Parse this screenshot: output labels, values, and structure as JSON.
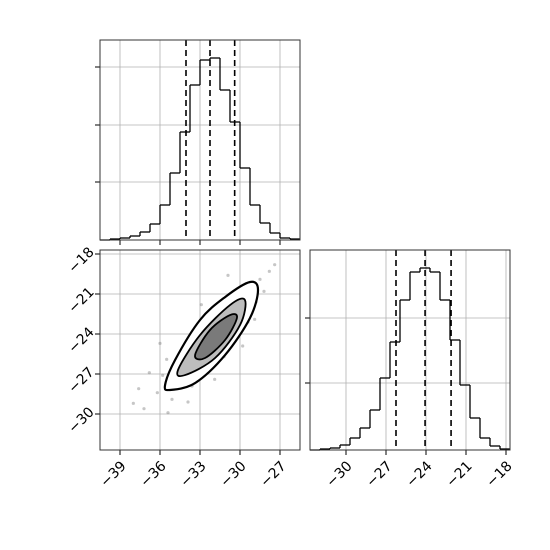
{
  "chart_data": [
    {
      "type": "step-histogram",
      "grid": true,
      "color": "#000000",
      "xlim": [
        -40.5,
        -25.5
      ],
      "xticks": [
        -39,
        -36,
        -33,
        -30,
        -27
      ],
      "ylim": [
        0,
        200
      ],
      "yticks": [
        58,
        115,
        173
      ],
      "bins": [
        -40.5,
        -39.75,
        -39,
        -38.25,
        -37.5,
        -36.75,
        -36,
        -35.25,
        -34.5,
        -33.75,
        -33,
        -32.25,
        -31.5,
        -30.75,
        -30,
        -29.25,
        -28.5,
        -27.75,
        -27,
        -26.25,
        -25.5
      ],
      "counts": [
        0,
        1,
        2,
        4,
        8,
        16,
        35,
        67,
        108,
        155,
        180,
        182,
        150,
        118,
        72,
        35,
        17,
        7,
        2,
        1
      ],
      "quantiles": [
        -34.05,
        -32.25,
        -30.4
      ]
    },
    {
      "type": "scatter-contour",
      "grid": true,
      "color": "#808080",
      "xlim": [
        -40.5,
        -25.5
      ],
      "xticks": [
        {
          "value": -39,
          "label": "−39"
        },
        {
          "value": -36,
          "label": "−36"
        },
        {
          "value": -33,
          "label": "−33"
        },
        {
          "value": -30,
          "label": "−30"
        },
        {
          "value": -27,
          "label": "−27"
        }
      ],
      "ylim": [
        -32.7,
        -17.7
      ],
      "yticks": [
        {
          "value": -18,
          "label": "−18"
        },
        {
          "value": -21,
          "label": "−21"
        },
        {
          "value": -24,
          "label": "−24"
        },
        {
          "value": -27,
          "label": "−27"
        },
        {
          "value": -30,
          "label": "−30"
        }
      ],
      "x": [
        -36.2,
        -35.8,
        -35.1,
        -34.9,
        -34.6,
        -34.3,
        -34.0,
        -33.8,
        -33.6,
        -33.4,
        -33.2,
        -33.0,
        -32.8,
        -32.6,
        -32.4,
        -32.2,
        -32.0,
        -31.8,
        -31.6,
        -31.4,
        -31.2,
        -31.0,
        -30.8,
        -30.6,
        -30.4,
        -30.2,
        -30.0,
        -29.7,
        -29.4,
        -29.1,
        -28.8,
        -28.5,
        -28.2,
        -27.8,
        -37.2,
        -36.8,
        -37.6,
        -35.4,
        -27.4,
        -28.9,
        -36.0,
        -31.9,
        -30.9,
        -33.9,
        -29.8,
        -38.0,
        -35.5,
        -32.9
      ],
      "y": [
        -28.4,
        -27.1,
        -28.9,
        -26.3,
        -27.5,
        -25.2,
        -26.8,
        -24.6,
        -27.9,
        -25.9,
        -23.8,
        -25.1,
        -26.4,
        -24.2,
        -22.9,
        -25.5,
        -23.6,
        -24.8,
        -22.4,
        -23.9,
        -25.7,
        -22.1,
        -23.3,
        -21.5,
        -24.4,
        -22.6,
        -20.9,
        -21.8,
        -23.1,
        -20.4,
        -21.6,
        -19.9,
        -20.8,
        -19.3,
        -29.6,
        -26.9,
        -28.1,
        -29.9,
        -18.8,
        -22.9,
        -24.7,
        -27.4,
        -19.6,
        -29.1,
        -24.9,
        -29.2,
        -25.9,
        -21.8
      ],
      "contours": [
        {
          "fill": "#ffffff",
          "x": [
            -35.62,
            -34.87,
            -33.0,
            -31.12,
            -29.25,
            -28.65,
            -29.25,
            -31.12,
            -33.37,
            -35.25
          ],
          "y": [
            -27.83,
            -25.95,
            -22.95,
            -21.23,
            -20.1,
            -20.7,
            -22.8,
            -25.58,
            -27.68,
            -28.2
          ]
        },
        {
          "fill": "#bdbdbd",
          "x": [
            -34.65,
            -33.0,
            -30.75,
            -29.63,
            -30.0,
            -31.87,
            -34.12
          ],
          "y": [
            -26.7,
            -24.08,
            -21.83,
            -21.45,
            -23.33,
            -25.8,
            -27.08
          ]
        },
        {
          "fill": "#7a7a7a",
          "x": [
            -33.37,
            -32.25,
            -30.75,
            -30.23,
            -31.12,
            -32.62
          ],
          "y": [
            -25.58,
            -23.7,
            -22.58,
            -22.8,
            -24.45,
            -25.8
          ]
        }
      ]
    },
    {
      "type": "step-histogram",
      "grid": true,
      "color": "#000000",
      "xlim": [
        -32.7,
        -17.7
      ],
      "xticks": [
        {
          "value": -30,
          "label": "−30"
        },
        {
          "value": -27,
          "label": "−27"
        },
        {
          "value": -24,
          "label": "−24"
        },
        {
          "value": -21,
          "label": "−21"
        },
        {
          "value": -18,
          "label": "−18"
        }
      ],
      "ylim": [
        0,
        200
      ],
      "yticks": [
        67,
        132
      ],
      "bins": [
        -32.7,
        -31.95,
        -31.2,
        -30.45,
        -29.7,
        -28.95,
        -28.2,
        -27.45,
        -26.7,
        -25.95,
        -25.2,
        -24.45,
        -23.7,
        -22.95,
        -22.2,
        -21.45,
        -20.7,
        -19.95,
        -19.2,
        -18.45,
        -17.7
      ],
      "counts": [
        0,
        1,
        2,
        5,
        12,
        22,
        40,
        72,
        108,
        150,
        178,
        182,
        178,
        150,
        110,
        65,
        32,
        12,
        4,
        1
      ],
      "quantiles": [
        -26.25,
        -24.07,
        -22.12
      ]
    }
  ]
}
